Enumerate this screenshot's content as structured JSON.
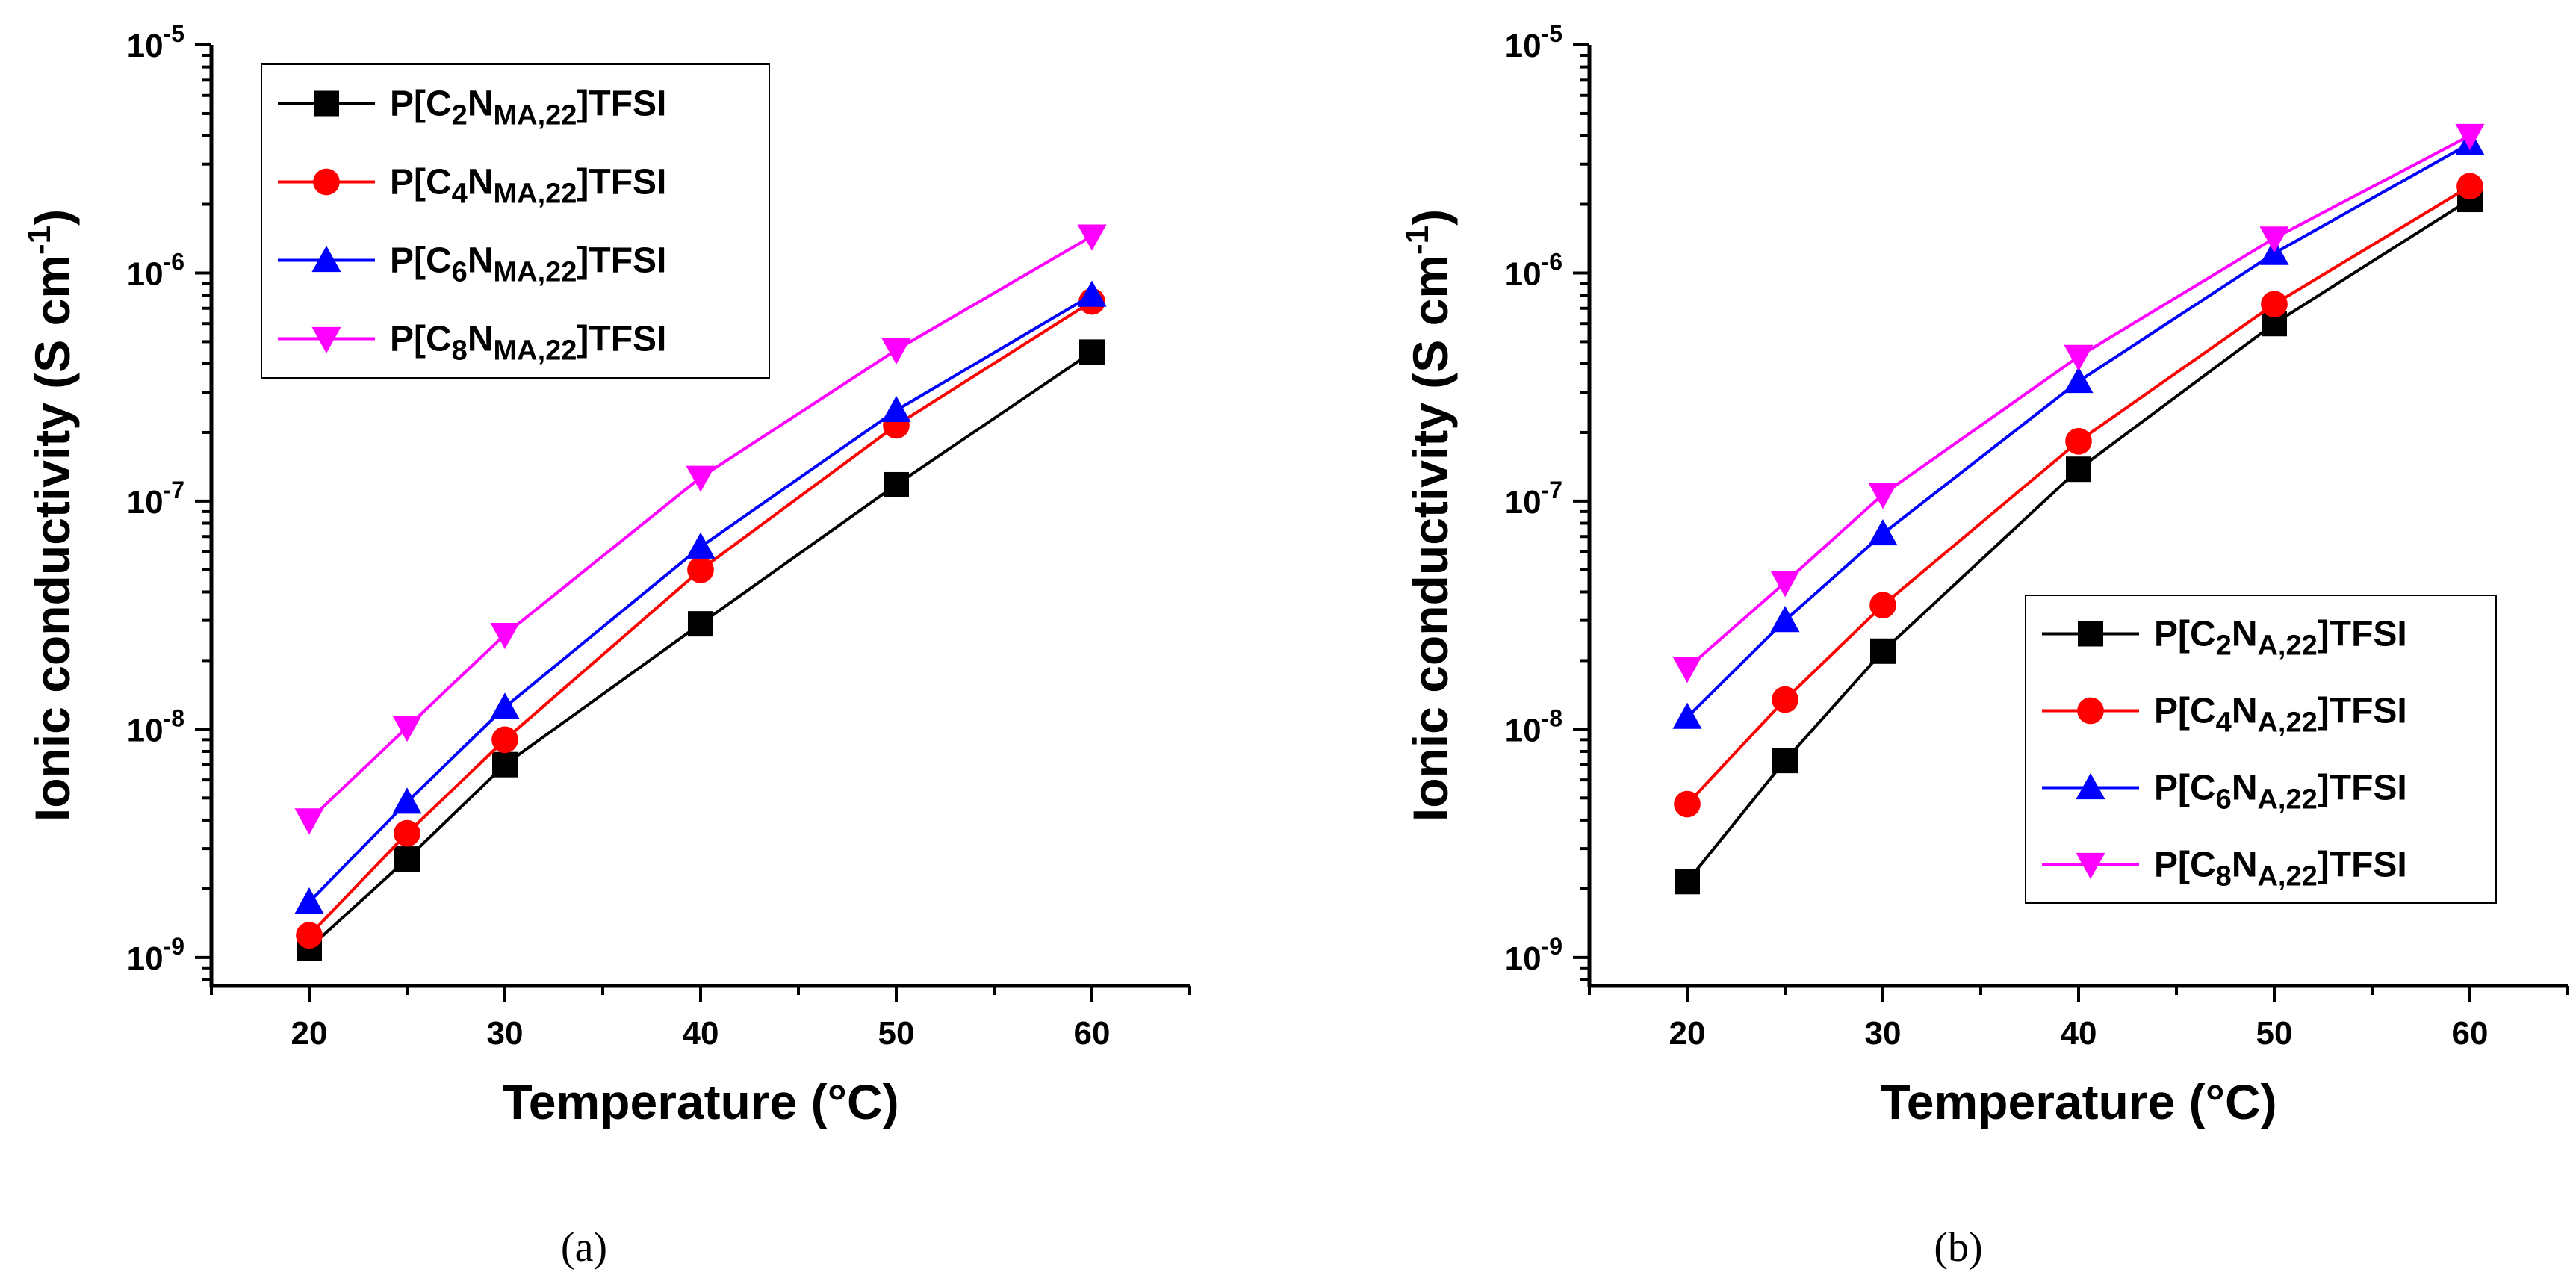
{
  "chart_data": [
    {
      "type": "line",
      "panel": "a",
      "caption": "(a)",
      "xlabel": "Temperature (°C)",
      "ylabel": "Ionic conductivity (S cm-1)",
      "ylabel_parts": {
        "main": "Ionic conductivity (S cm",
        "sup": "-1",
        "close": ")"
      },
      "xlim": [
        15,
        65
      ],
      "ylim": [
        7.5e-10,
        1e-05
      ],
      "yscale": "log",
      "xticks": [
        20,
        30,
        40,
        50,
        60
      ],
      "xtick_labels": [
        "20",
        "30",
        "40",
        "50",
        "60"
      ],
      "yticks": [
        1e-09,
        1e-08,
        1e-07,
        1e-06,
        1e-05
      ],
      "ytick_labels": [
        {
          "base": "10",
          "exp": "-9"
        },
        {
          "base": "10",
          "exp": "-8"
        },
        {
          "base": "10",
          "exp": "-7"
        },
        {
          "base": "10",
          "exp": "-6"
        },
        {
          "base": "10",
          "exp": "-5"
        }
      ],
      "legend_position": "top-left",
      "x": [
        20,
        25,
        30,
        40,
        50,
        60
      ],
      "series": [
        {
          "name": "P[C2NMA,22]TFSI",
          "label_parts": {
            "a": "P[C",
            "s1": "2",
            "b": "N",
            "s2": "MA,22",
            "c": "]TFSI"
          },
          "color": "#000000",
          "marker": "square",
          "values": [
            1.1e-09,
            2.7e-09,
            7e-09,
            2.9e-08,
            1.18e-07,
            4.5e-07
          ]
        },
        {
          "name": "P[C4NMA,22]TFSI",
          "label_parts": {
            "a": "P[C",
            "s1": "4",
            "b": "N",
            "s2": "MA,22",
            "c": "]TFSI"
          },
          "color": "#ff0000",
          "marker": "circle",
          "values": [
            1.25e-09,
            3.5e-09,
            9e-09,
            5e-08,
            2.15e-07,
            7.5e-07
          ]
        },
        {
          "name": "P[C6NMA,22]TFSI",
          "label_parts": {
            "a": "P[C",
            "s1": "6",
            "b": "N",
            "s2": "MA,22",
            "c": "]TFSI"
          },
          "color": "#0000ff",
          "marker": "triangle-up",
          "values": [
            1.75e-09,
            4.8e-09,
            1.25e-08,
            6.3e-08,
            2.5e-07,
            8e-07
          ]
        },
        {
          "name": "P[C8NMA,22]TFSI",
          "label_parts": {
            "a": "P[C",
            "s1": "8",
            "b": "N",
            "s2": "MA,22",
            "c": "]TFSI"
          },
          "color": "#ff00ff",
          "marker": "triangle-down",
          "values": [
            4e-09,
            1.02e-08,
            2.6e-08,
            1.27e-07,
            4.6e-07,
            1.45e-06
          ]
        }
      ]
    },
    {
      "type": "line",
      "panel": "b",
      "caption": "(b)",
      "xlabel": "Temperature (°C)",
      "ylabel": "Ionic conductivity (S cm-1)",
      "ylabel_parts": {
        "main": "Ionic conductivity (S cm",
        "sup": "-1",
        "close": ")"
      },
      "xlim": [
        15,
        65
      ],
      "ylim": [
        7.5e-10,
        1e-05
      ],
      "yscale": "log",
      "xticks": [
        20,
        30,
        40,
        50,
        60
      ],
      "xtick_labels": [
        "20",
        "30",
        "40",
        "50",
        "60"
      ],
      "yticks": [
        1e-09,
        1e-08,
        1e-07,
        1e-06,
        1e-05
      ],
      "ytick_labels": [
        {
          "base": "10",
          "exp": "-9"
        },
        {
          "base": "10",
          "exp": "-8"
        },
        {
          "base": "10",
          "exp": "-7"
        },
        {
          "base": "10",
          "exp": "-6"
        },
        {
          "base": "10",
          "exp": "-5"
        }
      ],
      "legend_position": "bottom-right",
      "x": [
        20,
        25,
        30,
        40,
        50,
        60
      ],
      "series": [
        {
          "name": "P[C2NA,22]TFSI",
          "label_parts": {
            "a": "P[C",
            "s1": "2",
            "b": "N",
            "s2": "A,22",
            "c": "]TFSI"
          },
          "color": "#000000",
          "marker": "square",
          "values": [
            2.15e-09,
            7.3e-09,
            2.2e-08,
            1.38e-07,
            6e-07,
            2.1e-06
          ]
        },
        {
          "name": "P[C4NA,22]TFSI",
          "label_parts": {
            "a": "P[C",
            "s1": "4",
            "b": "N",
            "s2": "A,22",
            "c": "]TFSI"
          },
          "color": "#ff0000",
          "marker": "circle",
          "values": [
            4.7e-09,
            1.35e-08,
            3.5e-08,
            1.83e-07,
            7.3e-07,
            2.4e-06
          ]
        },
        {
          "name": "P[C6NA,22]TFSI",
          "label_parts": {
            "a": "P[C",
            "s1": "6",
            "b": "N",
            "s2": "A,22",
            "c": "]TFSI"
          },
          "color": "#0000ff",
          "marker": "triangle-up",
          "values": [
            1.13e-08,
            3e-08,
            7.2e-08,
            3.35e-07,
            1.22e-06,
            3.7e-06
          ]
        },
        {
          "name": "P[C8NA,22]TFSI",
          "label_parts": {
            "a": "P[C",
            "s1": "8",
            "b": "N",
            "s2": "A,22",
            "c": "]TFSI"
          },
          "color": "#ff00ff",
          "marker": "triangle-down",
          "values": [
            1.85e-08,
            4.4e-08,
            1.07e-07,
            4.3e-07,
            1.42e-06,
            4e-06
          ]
        }
      ]
    }
  ]
}
